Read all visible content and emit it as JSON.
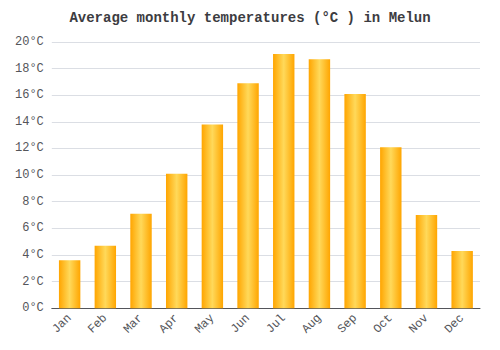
{
  "chart_data": {
    "type": "bar",
    "title": "Average monthly temperatures (°C ) in Melun",
    "categories": [
      "Jan",
      "Feb",
      "Mar",
      "Apr",
      "May",
      "Jun",
      "Jul",
      "Aug",
      "Sep",
      "Oct",
      "Nov",
      "Dec"
    ],
    "values": [
      3.6,
      4.7,
      7.1,
      10.1,
      13.8,
      16.9,
      19.1,
      18.7,
      16.1,
      12.1,
      7.0,
      4.3
    ],
    "color": "#FFA500",
    "ylim": [
      0,
      20
    ],
    "yticks": [
      {
        "value": 0,
        "label": "0°C"
      },
      {
        "value": 2,
        "label": "2°C"
      },
      {
        "value": 4,
        "label": "4°C"
      },
      {
        "value": 6,
        "label": "6°C"
      },
      {
        "value": 8,
        "label": "8°C"
      },
      {
        "value": 10,
        "label": "10°C"
      },
      {
        "value": 12,
        "label": "12°C"
      },
      {
        "value": 14,
        "label": "14°C"
      },
      {
        "value": 16,
        "label": "16°C"
      },
      {
        "value": 18,
        "label": "18°C"
      },
      {
        "value": 20,
        "label": "20°C"
      }
    ],
    "grid": true
  }
}
